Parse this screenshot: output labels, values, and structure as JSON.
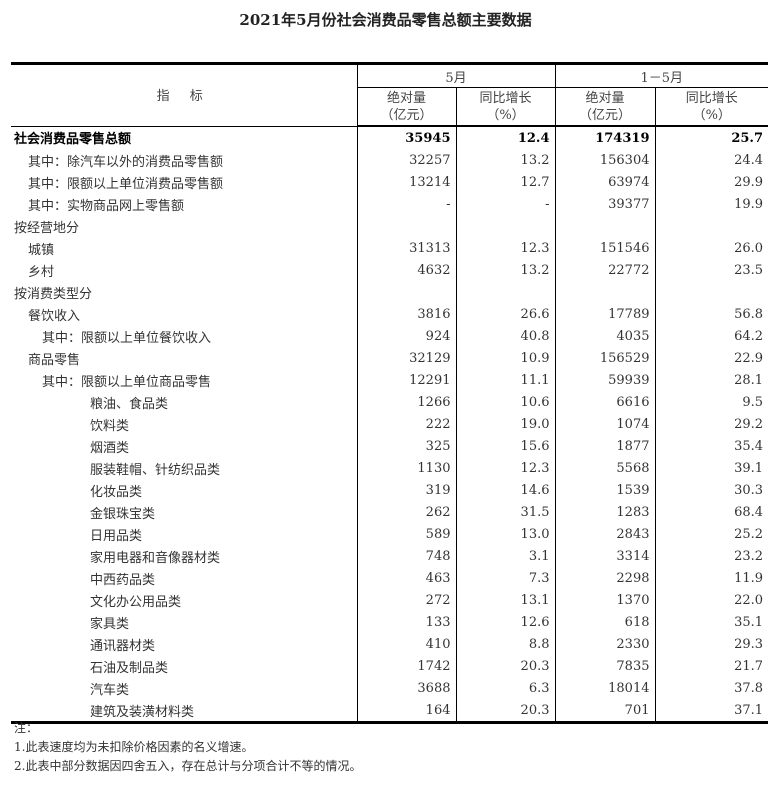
{
  "title": "2021年5月份社会消费品零售总额主要数据",
  "header": {
    "indicator": "指 标",
    "period1": "5月",
    "period2": "1－5月",
    "abs": "绝对量",
    "abs_unit": "（亿元）",
    "yoy": "同比增长",
    "yoy_unit": "（%）"
  },
  "rows": [
    {
      "label": "社会消费品零售总额",
      "level": 0,
      "bold": true,
      "v": [
        "35945",
        "12.4",
        "174319",
        "25.7"
      ]
    },
    {
      "label": "其中：除汽车以外的消费品零售额",
      "level": 1,
      "v": [
        "32257",
        "13.2",
        "156304",
        "24.4"
      ]
    },
    {
      "label": "其中：限额以上单位消费品零售额",
      "level": 1,
      "v": [
        "13214",
        "12.7",
        "63974",
        "29.9"
      ]
    },
    {
      "label": "其中：实物商品网上零售额",
      "level": 1,
      "v": [
        "-",
        "-",
        "39377",
        "19.9"
      ]
    },
    {
      "label": "按经营地分",
      "level": 0,
      "v": [
        "",
        "",
        "",
        ""
      ]
    },
    {
      "label": "城镇",
      "level": 1,
      "v": [
        "31313",
        "12.3",
        "151546",
        "26.0"
      ]
    },
    {
      "label": "乡村",
      "level": 1,
      "v": [
        "4632",
        "13.2",
        "22772",
        "23.5"
      ]
    },
    {
      "label": "按消费类型分",
      "level": 0,
      "v": [
        "",
        "",
        "",
        ""
      ]
    },
    {
      "label": "餐饮收入",
      "level": 1,
      "v": [
        "3816",
        "26.6",
        "17789",
        "56.8"
      ]
    },
    {
      "label": "其中：限额以上单位餐饮收入",
      "level": 2,
      "v": [
        "924",
        "40.8",
        "4035",
        "64.2"
      ]
    },
    {
      "label": "商品零售",
      "level": 1,
      "v": [
        "32129",
        "10.9",
        "156529",
        "22.9"
      ]
    },
    {
      "label": "其中：限额以上单位商品零售",
      "level": 2,
      "v": [
        "12291",
        "11.1",
        "59939",
        "28.1"
      ]
    },
    {
      "label": "粮油、食品类",
      "level": 3,
      "v": [
        "1266",
        "10.6",
        "6616",
        "9.5"
      ]
    },
    {
      "label": "饮料类",
      "level": 3,
      "v": [
        "222",
        "19.0",
        "1074",
        "29.2"
      ]
    },
    {
      "label": "烟酒类",
      "level": 3,
      "v": [
        "325",
        "15.6",
        "1877",
        "35.4"
      ]
    },
    {
      "label": "服装鞋帽、针纺织品类",
      "level": 3,
      "v": [
        "1130",
        "12.3",
        "5568",
        "39.1"
      ]
    },
    {
      "label": "化妆品类",
      "level": 3,
      "v": [
        "319",
        "14.6",
        "1539",
        "30.3"
      ]
    },
    {
      "label": "金银珠宝类",
      "level": 3,
      "v": [
        "262",
        "31.5",
        "1283",
        "68.4"
      ]
    },
    {
      "label": "日用品类",
      "level": 3,
      "v": [
        "589",
        "13.0",
        "2843",
        "25.2"
      ]
    },
    {
      "label": "家用电器和音像器材类",
      "level": 3,
      "v": [
        "748",
        "3.1",
        "3314",
        "23.2"
      ]
    },
    {
      "label": "中西药品类",
      "level": 3,
      "v": [
        "463",
        "7.3",
        "2298",
        "11.9"
      ]
    },
    {
      "label": "文化办公用品类",
      "level": 3,
      "v": [
        "272",
        "13.1",
        "1370",
        "22.0"
      ]
    },
    {
      "label": "家具类",
      "level": 3,
      "v": [
        "133",
        "12.6",
        "618",
        "35.1"
      ]
    },
    {
      "label": "通讯器材类",
      "level": 3,
      "v": [
        "410",
        "8.8",
        "2330",
        "29.3"
      ]
    },
    {
      "label": "石油及制品类",
      "level": 3,
      "v": [
        "1742",
        "20.3",
        "7835",
        "21.7"
      ]
    },
    {
      "label": "汽车类",
      "level": 3,
      "v": [
        "3688",
        "6.3",
        "18014",
        "37.8"
      ]
    },
    {
      "label": "建筑及装潢材料类",
      "level": 3,
      "v": [
        "164",
        "20.3",
        "701",
        "37.1"
      ]
    }
  ],
  "notes": [
    "注：",
    "1.此表速度均为未扣除价格因素的名义增速。",
    "2.此表中部分数据因四舍五入，存在总计与分项合计不等的情况。"
  ]
}
